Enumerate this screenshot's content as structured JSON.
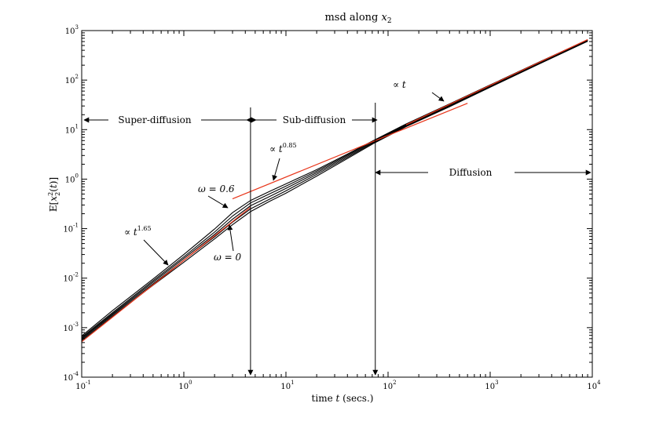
{
  "chart_data": {
    "type": "line",
    "title": "msd along x₂",
    "xlabel": "time t (secs.)",
    "ylabel": "E[x₂²(t)]",
    "xscale": "log",
    "yscale": "log",
    "xlim": [
      0.1,
      10000
    ],
    "ylim": [
      0.0001,
      1000
    ],
    "x_ticks": [
      {
        "mant": "10",
        "exp": "-1"
      },
      {
        "mant": "10",
        "exp": "0"
      },
      {
        "mant": "10",
        "exp": "1"
      },
      {
        "mant": "10",
        "exp": "2"
      },
      {
        "mant": "10",
        "exp": "3"
      },
      {
        "mant": "10",
        "exp": "4"
      }
    ],
    "y_ticks": [
      {
        "mant": "10",
        "exp": "-4"
      },
      {
        "mant": "10",
        "exp": "-3"
      },
      {
        "mant": "10",
        "exp": "-2"
      },
      {
        "mant": "10",
        "exp": "-1"
      },
      {
        "mant": "10",
        "exp": "0"
      },
      {
        "mant": "10",
        "exp": "1"
      },
      {
        "mant": "10",
        "exp": "2"
      },
      {
        "mant": "10",
        "exp": "3"
      }
    ],
    "grid": false,
    "colors": {
      "series": "#000000",
      "fit": "#e8351a",
      "axes": "#000000"
    },
    "x": [
      0.1,
      0.2,
      0.5,
      1,
      2,
      3,
      4.5,
      7,
      10,
      20,
      40,
      75,
      150,
      400,
      1000,
      3000,
      9000
    ],
    "series": [
      {
        "values": [
          0.00055,
          0.0017,
          0.0072,
          0.021,
          0.062,
          0.12,
          0.22,
          0.36,
          0.52,
          1.15,
          2.6,
          5.5,
          11.5,
          29,
          72,
          210,
          610
        ]
      },
      {
        "values": [
          0.00058,
          0.0018,
          0.0077,
          0.023,
          0.068,
          0.135,
          0.25,
          0.4,
          0.58,
          1.25,
          2.75,
          5.7,
          11.8,
          30,
          74,
          215,
          620
        ]
      },
      {
        "values": [
          0.00061,
          0.0019,
          0.0083,
          0.025,
          0.076,
          0.155,
          0.29,
          0.45,
          0.65,
          1.35,
          2.9,
          5.9,
          12.2,
          31,
          76,
          220,
          630
        ]
      },
      {
        "values": [
          0.00064,
          0.002,
          0.0089,
          0.027,
          0.085,
          0.18,
          0.33,
          0.51,
          0.72,
          1.45,
          3.05,
          6.1,
          12.6,
          32,
          78,
          225,
          640
        ]
      },
      {
        "values": [
          0.00068,
          0.0022,
          0.0096,
          0.03,
          0.098,
          0.21,
          0.37,
          0.57,
          0.8,
          1.55,
          3.2,
          6.3,
          13,
          33,
          80,
          230,
          650
        ]
      }
    ],
    "fits": [
      {
        "x": [
          0.1,
          4.5
        ],
        "values": [
          0.00052,
          0.27
        ]
      },
      {
        "x": [
          3,
          75
        ],
        "values": [
          0.4,
          6.0
        ]
      },
      {
        "x": [
          75,
          600
        ],
        "values": [
          6.0,
          34
        ]
      },
      {
        "x": [
          150,
          9000
        ],
        "values": [
          12.5,
          660
        ]
      }
    ],
    "vlines": [
      4.5,
      75
    ],
    "annotations": {
      "super": "Super-diffusion",
      "sub": "Sub-diffusion",
      "diff": "Diffusion",
      "prop_t": "∝ t",
      "prop_085_base": "∝ t",
      "prop_085_exp": "0.85",
      "prop_165_base": "∝ t",
      "prop_165_exp": "1.65",
      "omega06": "ω = 0.6",
      "omega0": "ω = 0"
    }
  }
}
